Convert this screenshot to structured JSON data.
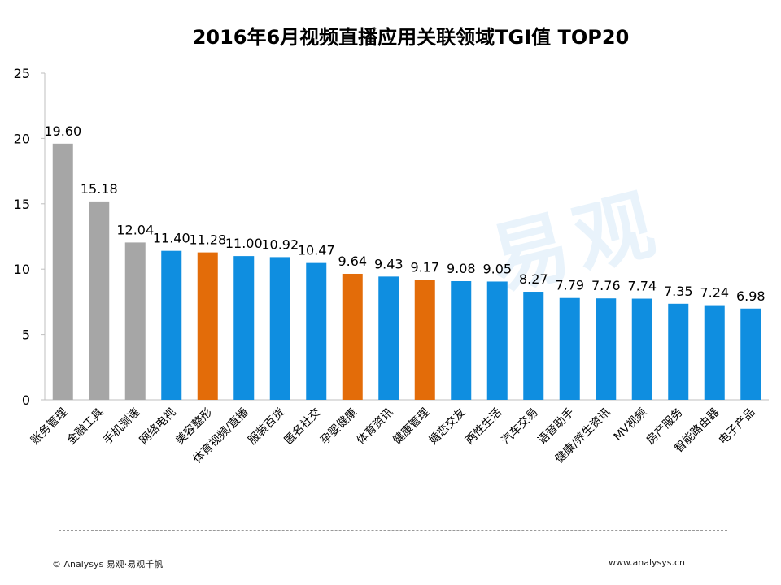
{
  "watermark": "易观",
  "footer": {
    "copyright": "© Analysys 易观·易观千帆",
    "url": "www.analysys.cn"
  },
  "colors": {
    "gray": "#a6a6a6",
    "blue": "#0f8ee0",
    "orange": "#e36c09"
  },
  "chart_data": {
    "type": "bar",
    "title": "2016年6月视频直播应用关联领域TGI值  TOP20",
    "xlabel": "",
    "ylabel": "",
    "ylim": [
      0,
      25
    ],
    "yticks": [
      0,
      5,
      10,
      15,
      20,
      25
    ],
    "categories": [
      "账务管理",
      "金融工具",
      "手机测速",
      "网络电视",
      "美容整形",
      "体育视频/直播",
      "服装百货",
      "匿名社交",
      "孕婴健康",
      "体育资讯",
      "健康管理",
      "婚恋交友",
      "两性生活",
      "汽车交易",
      "语音助手",
      "健康/养生资讯",
      "MV视频",
      "房产服务",
      "智能路由器",
      "电子产品"
    ],
    "values": [
      19.6,
      15.18,
      12.04,
      11.4,
      11.28,
      11.0,
      10.92,
      10.47,
      9.64,
      9.43,
      9.17,
      9.08,
      9.05,
      8.27,
      7.79,
      7.76,
      7.74,
      7.35,
      7.24,
      6.98
    ],
    "value_labels": [
      "19.60",
      "15.18",
      "12.04",
      "11.40",
      "11.28",
      "11.00",
      "10.92",
      "10.47",
      "9.64",
      "9.43",
      "9.17",
      "9.08",
      "9.05",
      "8.27",
      "7.79",
      "7.76",
      "7.74",
      "7.35",
      "7.24",
      "6.98"
    ],
    "bar_colors": [
      "gray",
      "gray",
      "gray",
      "blue",
      "orange",
      "blue",
      "blue",
      "blue",
      "orange",
      "blue",
      "orange",
      "blue",
      "blue",
      "blue",
      "blue",
      "blue",
      "blue",
      "blue",
      "blue",
      "blue"
    ]
  }
}
